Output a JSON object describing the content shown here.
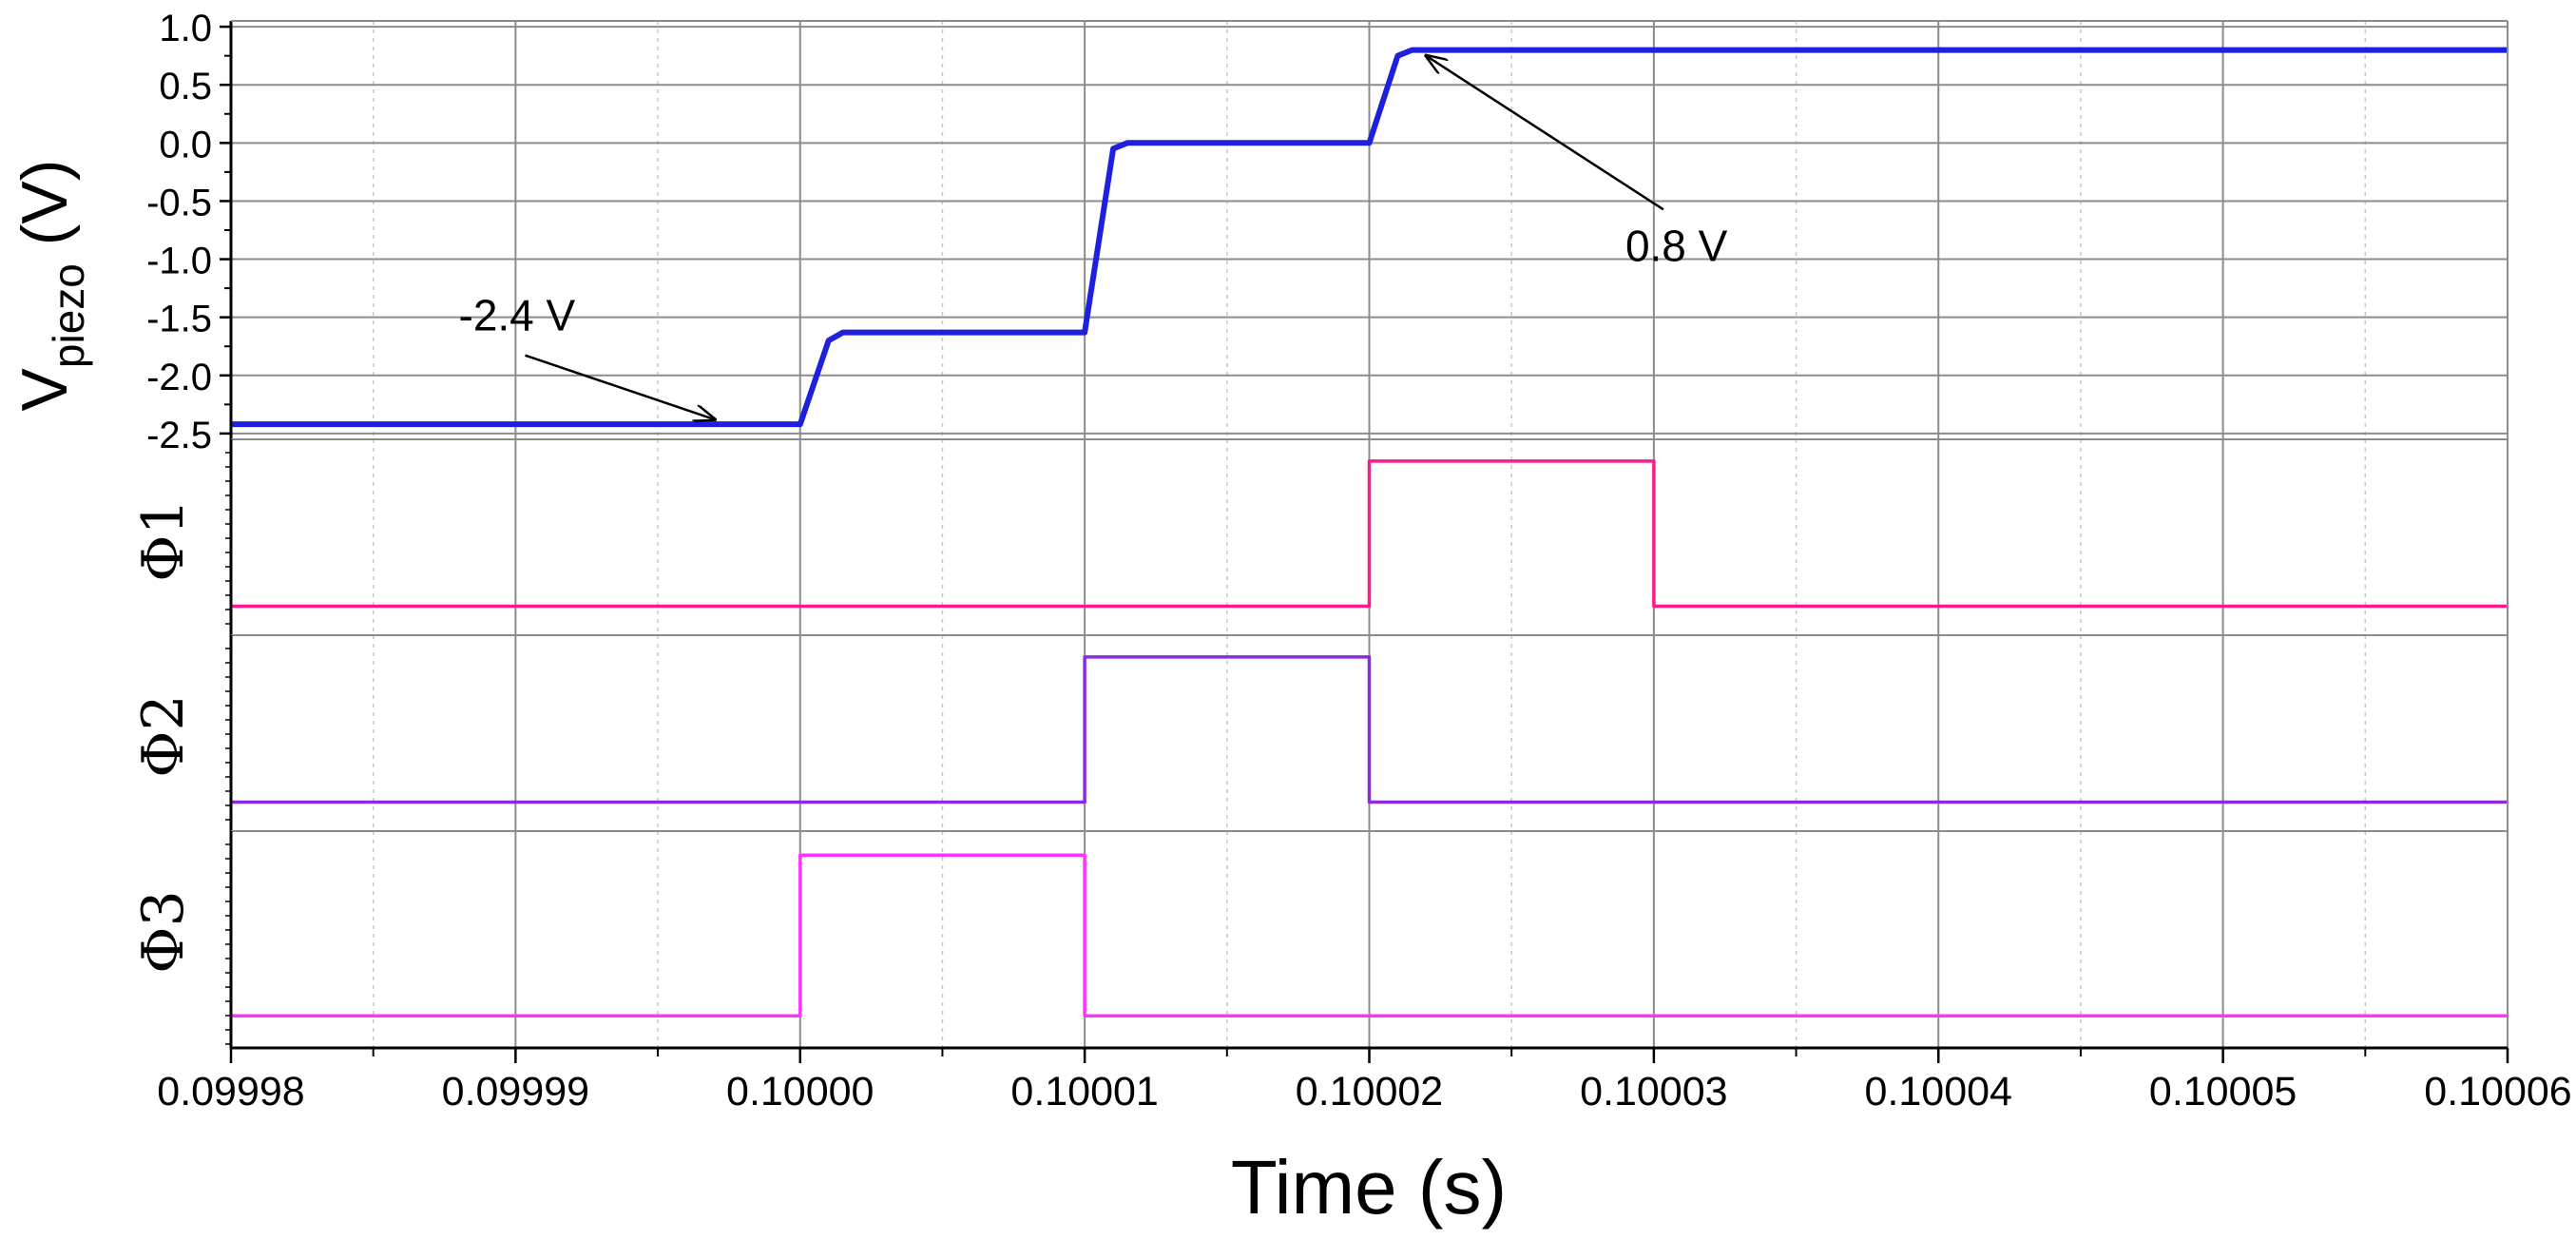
{
  "chart_data": {
    "type": "line",
    "x_ticks": [
      "0.09998",
      "0.09999",
      "0.10000",
      "0.10001",
      "0.10002",
      "0.10003",
      "0.10004",
      "0.10005",
      "0.10006"
    ],
    "xlim": [
      0.09998,
      0.10006
    ],
    "xlabel": "Time (s)",
    "grid": true,
    "panels": [
      {
        "id": "vpiezo",
        "ylabel_main": "V",
        "ylabel_sub": "piezo",
        "ylabel_unit": " (V)",
        "ylim": [
          -2.55,
          1.05
        ],
        "y_ticks": [
          "1.0",
          "0.5",
          "0.0",
          "-0.5",
          "-1.0",
          "-1.5",
          "-2.0",
          "-2.5"
        ],
        "color": "#1f1fe0",
        "series": {
          "x": [
            0.09998,
            0.1,
            0.100001,
            0.1000015,
            0.10001,
            0.100011,
            0.1000115,
            0.10002,
            0.100021,
            0.1000215,
            0.10006
          ],
          "y": [
            -2.42,
            -2.42,
            -1.7,
            -1.63,
            -1.63,
            -0.05,
            0.0,
            0.0,
            0.75,
            0.8,
            0.8
          ]
        },
        "annotations": [
          {
            "text": "-2.4 V",
            "x": 0.099988,
            "y": -1.5,
            "arrow_to": [
              0.099997,
              -2.38
            ]
          },
          {
            "text": "0.8 V",
            "x": 0.100029,
            "y": -0.9,
            "arrow_to": [
              0.100022,
              0.75
            ]
          }
        ]
      },
      {
        "id": "phi1",
        "ylabel": "Φ1",
        "color": "#ff1a8c",
        "ylim": [
          -0.2,
          1.15
        ],
        "series": {
          "x": [
            0.09998,
            0.10002,
            0.10002,
            0.10003,
            0.10003,
            0.10006
          ],
          "y": [
            0,
            0,
            1,
            1,
            0,
            0
          ]
        }
      },
      {
        "id": "phi2",
        "ylabel": "Φ2",
        "color": "#8a2be2",
        "ylim": [
          -0.2,
          1.15
        ],
        "series": {
          "x": [
            0.09998,
            0.10001,
            0.10001,
            0.10002,
            0.10002,
            0.10006
          ],
          "y": [
            0,
            0,
            1,
            1,
            0,
            0
          ]
        }
      },
      {
        "id": "phi3",
        "ylabel": "Φ3",
        "color": "#ff33ff",
        "ylim": [
          -0.2,
          1.15
        ],
        "series": {
          "x": [
            0.09998,
            0.1,
            0.1,
            0.10001,
            0.10001,
            0.10006
          ],
          "y": [
            0,
            0,
            1,
            1,
            0,
            0
          ]
        }
      }
    ]
  }
}
